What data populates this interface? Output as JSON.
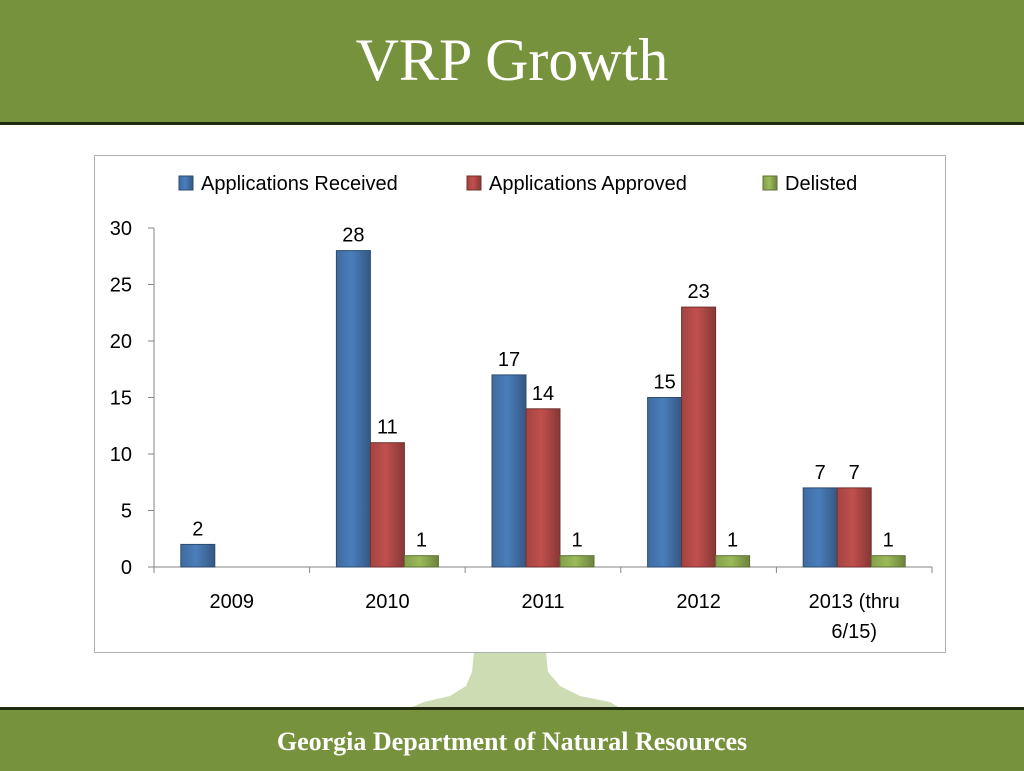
{
  "slide": {
    "title": "VRP Growth",
    "footer": "Georgia Department of Natural Resources",
    "colors": {
      "band": "#77923c",
      "band_border": "#1f2a10"
    }
  },
  "chart_data": {
    "type": "bar",
    "title": "",
    "xlabel": "",
    "ylabel": "",
    "categories": [
      "2009",
      "2010",
      "2011",
      "2012",
      "2013 (thru 6/15)"
    ],
    "series": [
      {
        "name": "Applications Received",
        "values": [
          2,
          28,
          17,
          15,
          7
        ],
        "color": "#4a7ebb"
      },
      {
        "name": "Applications Approved",
        "values": [
          null,
          11,
          14,
          23,
          7
        ],
        "color": "#c0504d"
      },
      {
        "name": "Delisted",
        "values": [
          null,
          1,
          1,
          1,
          1
        ],
        "color": "#9bbb59"
      }
    ],
    "ylim": [
      0,
      30
    ],
    "yticks": [
      0,
      5,
      10,
      15,
      20,
      25,
      30
    ],
    "legend_position": "top",
    "grid": false,
    "data_labels": true
  }
}
